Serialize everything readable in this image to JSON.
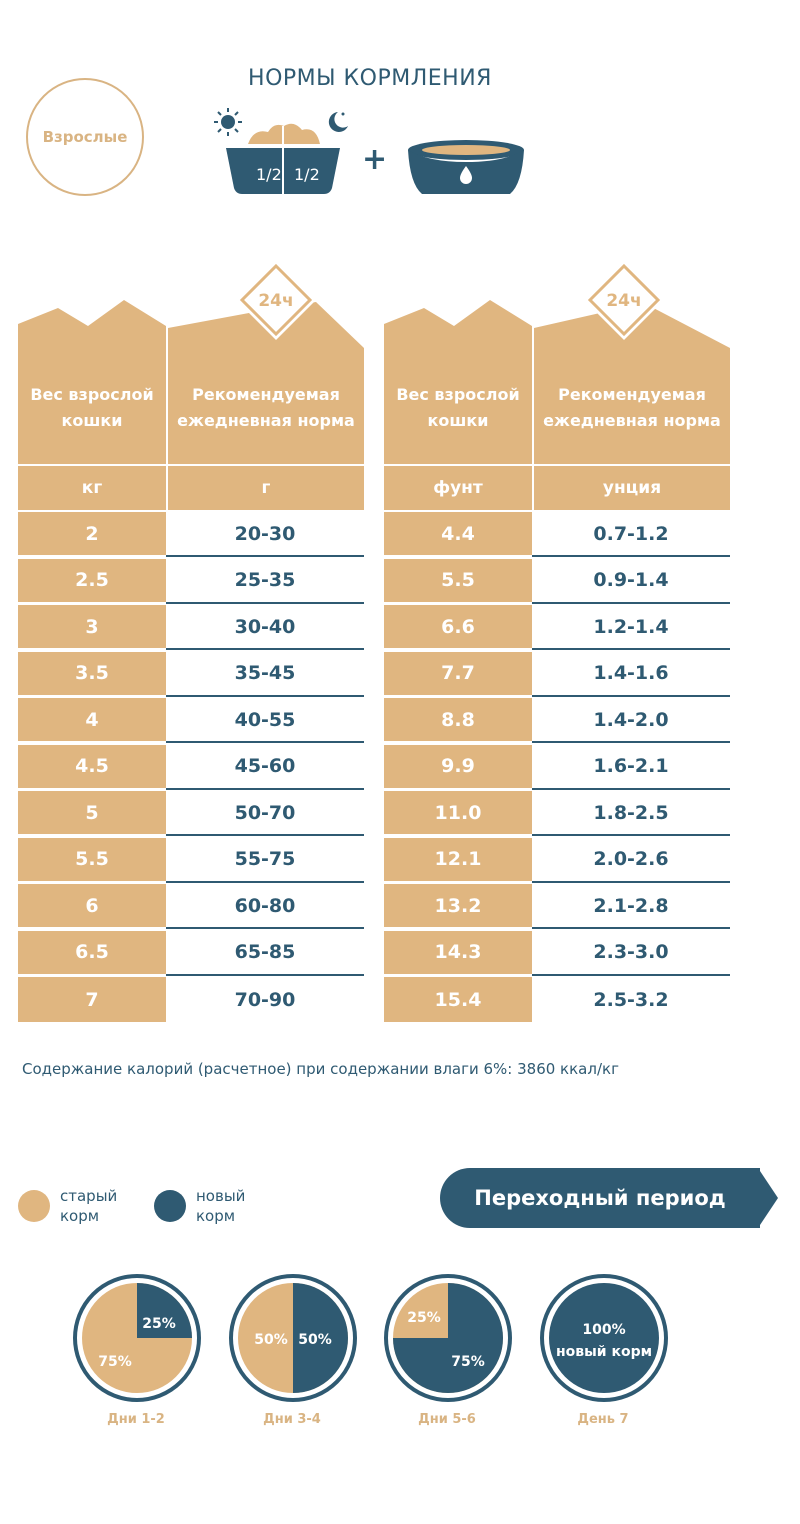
{
  "header": {
    "badge": "Взрослые",
    "title": "НОРМЫ КОРМЛЕНИЯ",
    "half_left": "1/2",
    "half_right": "1/2"
  },
  "tables": [
    {
      "badge": "24ч",
      "col1_header": "Вес взрослой кошки",
      "col2_header": "Рекомендуемая ежедневная норма",
      "col1_unit": "кг",
      "col2_unit": "г",
      "rows": [
        [
          "2",
          "20-30"
        ],
        [
          "2.5",
          "25-35"
        ],
        [
          "3",
          "30-40"
        ],
        [
          "3.5",
          "35-45"
        ],
        [
          "4",
          "40-55"
        ],
        [
          "4.5",
          "45-60"
        ],
        [
          "5",
          "50-70"
        ],
        [
          "5.5",
          "55-75"
        ],
        [
          "6",
          "60-80"
        ],
        [
          "6.5",
          "65-85"
        ],
        [
          "7",
          "70-90"
        ]
      ]
    },
    {
      "badge": "24ч",
      "col1_header": "Вес взрослой кошки",
      "col2_header": "Рекомендуемая ежедневная норма",
      "col1_unit": "фунт",
      "col2_unit": "унция",
      "rows": [
        [
          "4.4",
          "0.7-1.2"
        ],
        [
          "5.5",
          "0.9-1.4"
        ],
        [
          "6.6",
          "1.2-1.4"
        ],
        [
          "7.7",
          "1.4-1.6"
        ],
        [
          "8.8",
          "1.4-2.0"
        ],
        [
          "9.9",
          "1.6-2.1"
        ],
        [
          "11.0",
          "1.8-2.5"
        ],
        [
          "12.1",
          "2.0-2.6"
        ],
        [
          "13.2",
          "2.1-2.8"
        ],
        [
          "14.3",
          "2.3-3.0"
        ],
        [
          "15.4",
          "2.5-3.2"
        ]
      ]
    }
  ],
  "kcal_note": "Содержание калорий (расчетное) при содержании влаги 6%: 3860 ккал/кг",
  "legend": {
    "old_line1": "старый",
    "old_line2": "корм",
    "new_line1": "новый",
    "new_line2": "корм"
  },
  "transition_title": "Переходный период",
  "transition_steps": [
    {
      "day": "Дни 1-2",
      "new_pct_label": "25%",
      "old_pct_label": "75%",
      "new_fraction": 0.25
    },
    {
      "day": "Дни 3-4",
      "old_pct_label": "50%",
      "new_pct_label": "50%",
      "new_fraction": 0.5
    },
    {
      "day": "Дни 5-6",
      "old_pct_label": "25%",
      "new_pct_label": "75%",
      "new_fraction": 0.75
    },
    {
      "day": "День 7",
      "new_pct_label": "100%",
      "new_label2": "новый корм",
      "new_fraction": 1.0
    }
  ],
  "colors": {
    "tan": "#e0b680",
    "navy": "#2f5a72",
    "light_tan": "#d9b483"
  }
}
